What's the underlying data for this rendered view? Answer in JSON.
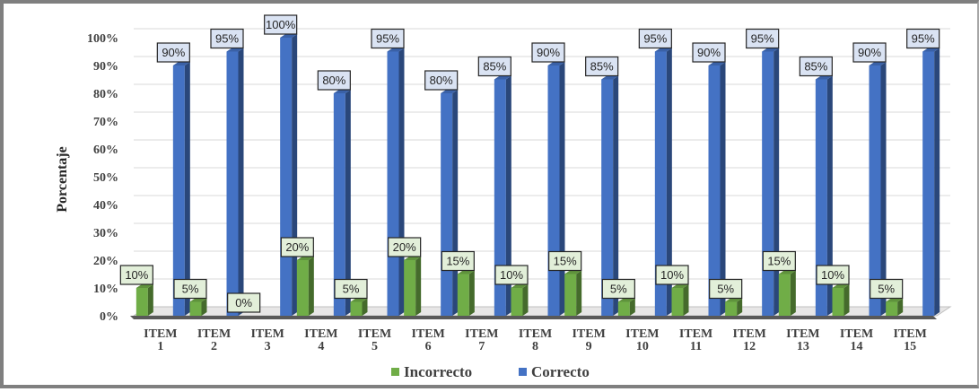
{
  "chart_data": {
    "type": "bar",
    "categories": [
      [
        "ITEM",
        "1"
      ],
      [
        "ITEM",
        "2"
      ],
      [
        "ITEM",
        "3"
      ],
      [
        "ITEM",
        "4"
      ],
      [
        "ITEM",
        "5"
      ],
      [
        "ITEM",
        "6"
      ],
      [
        "ITEM",
        "7"
      ],
      [
        "ITEM",
        "8"
      ],
      [
        "ITEM",
        "9"
      ],
      [
        "ITEM",
        "10"
      ],
      [
        "ITEM",
        "11"
      ],
      [
        "ITEM",
        "12"
      ],
      [
        "ITEM",
        "13"
      ],
      [
        "ITEM",
        "14"
      ],
      [
        "ITEM",
        "15"
      ]
    ],
    "series": [
      {
        "name": "Incorrecto",
        "values": [
          10,
          5,
          0,
          20,
          5,
          20,
          15,
          10,
          15,
          5,
          10,
          5,
          15,
          10,
          5
        ],
        "color": "#70ad47",
        "label_bg": "#e2efd9"
      },
      {
        "name": "Correcto",
        "values": [
          90,
          95,
          100,
          80,
          95,
          80,
          85,
          90,
          85,
          95,
          90,
          95,
          85,
          90,
          95
        ],
        "color": "#4472c4",
        "label_bg": "#dae3f3"
      }
    ],
    "ylabel": "Porcentaje",
    "yticks": [
      "0%",
      "10%",
      "20%",
      "30%",
      "40%",
      "50%",
      "60%",
      "70%",
      "80%",
      "90%",
      "100%"
    ],
    "value_suffix": "%",
    "ylim": [
      0,
      100
    ],
    "grid": true,
    "legend_position": "bottom",
    "style": "3d-clustered-column"
  }
}
